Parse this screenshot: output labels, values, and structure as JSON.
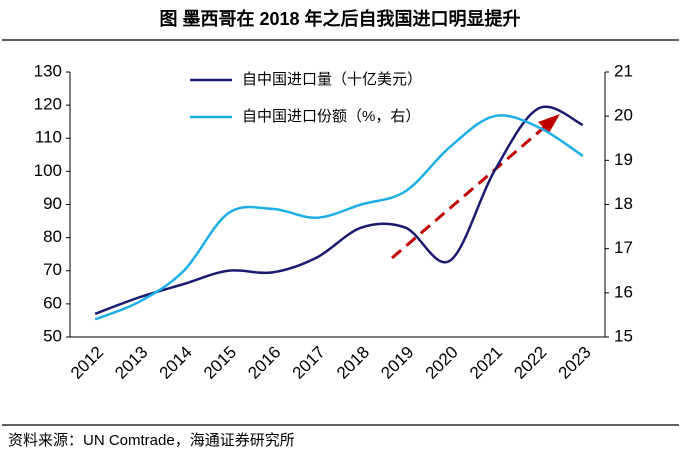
{
  "chart_data": {
    "type": "line",
    "title": "图  墨西哥在 2018 年之后自我国进口明显提升",
    "source": "资料来源：UN Comtrade，海通证券研究所",
    "categories": [
      "2012",
      "2013",
      "2014",
      "2015",
      "2016",
      "2017",
      "2018",
      "2019",
      "2020",
      "2021",
      "2022",
      "2023"
    ],
    "series": [
      {
        "name": "自中国进口量（十亿美元）",
        "color": "#1a1a6e",
        "values": [
          57,
          62,
          66,
          70,
          69.5,
          74,
          83,
          83,
          73,
          100,
          119,
          114
        ]
      },
      {
        "name": "自中国进口份额（%，右）",
        "color": "#1eaee6",
        "axis": "y2",
        "values": [
          15.4,
          15.8,
          16.5,
          17.8,
          17.9,
          17.7,
          18.0,
          18.3,
          19.3,
          20.0,
          19.75,
          19.1
        ]
      }
    ],
    "ylim": [
      50,
      130
    ],
    "yticks": [
      50,
      60,
      70,
      80,
      90,
      100,
      110,
      120,
      130
    ],
    "y2lim": [
      15,
      21
    ],
    "y2ticks": [
      15,
      16,
      17,
      18,
      19,
      20,
      21
    ]
  }
}
